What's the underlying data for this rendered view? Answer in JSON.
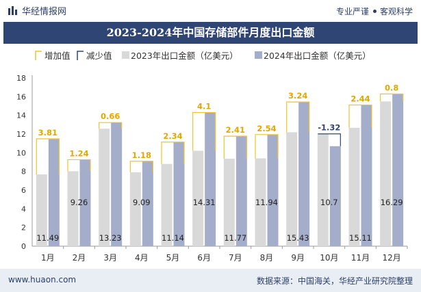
{
  "header": {
    "brand": "华经情报网",
    "slogan_left": "专业严谨",
    "slogan_right": "客观科学"
  },
  "footer": {
    "website": "www.huaon.com",
    "source": "数据来源：中国海关，华经产业研究院整理"
  },
  "colors": {
    "header_bg": "#2f4574",
    "bar2023": "#d9d9d9",
    "bar2024": "#a4aecb",
    "increase": "#f2c12e",
    "decrease": "#2f4574",
    "label_increase": "#e1a800",
    "label_decrease": "#2f4574"
  },
  "chart_data": {
    "type": "bar",
    "title": "2023-2024年中国存储部件月度出口金额",
    "legend": [
      "增加值",
      "减少值",
      "2023年出口金额（亿美元）",
      "2024年出口金额（亿美元）"
    ],
    "legend_position": "top-left",
    "categories": [
      "1月",
      "2月",
      "3月",
      "4月",
      "5月",
      "6月",
      "7月",
      "8月",
      "9月",
      "10月",
      "11月",
      "12月"
    ],
    "series": [
      {
        "name": "2023年出口金额（亿美元）",
        "values": [
          7.68,
          8.02,
          12.57,
          7.91,
          8.8,
          10.21,
          9.36,
          9.4,
          12.19,
          12.02,
          12.67,
          15.49
        ]
      },
      {
        "name": "2024年出口金额（亿美元）",
        "values": [
          11.49,
          9.26,
          13.23,
          9.09,
          11.14,
          14.31,
          11.77,
          11.94,
          15.43,
          10.7,
          15.11,
          16.29
        ]
      }
    ],
    "change_values": [
      3.81,
      1.24,
      0.66,
      1.18,
      2.34,
      4.1,
      2.41,
      2.54,
      3.24,
      -1.32,
      2.44,
      0.8
    ],
    "change_labels": [
      "3.81",
      "1.24",
      "0.66",
      "1.18",
      "2.34",
      "4.1",
      "2.41",
      "2.54",
      "3.24",
      "-1.32",
      "2.44",
      "0.8"
    ],
    "value_labels_2024": [
      "11.49",
      "9.26",
      "13.23",
      "9.09",
      "11.14",
      "14.31",
      "11.77",
      "11.94",
      "15.43",
      "10.7",
      "15.11",
      "16.29"
    ],
    "yticks": [
      "0",
      "2",
      "4",
      "6",
      "8",
      "10",
      "12",
      "14",
      "16",
      "18"
    ],
    "ylim": [
      0,
      18
    ],
    "grid": false
  }
}
